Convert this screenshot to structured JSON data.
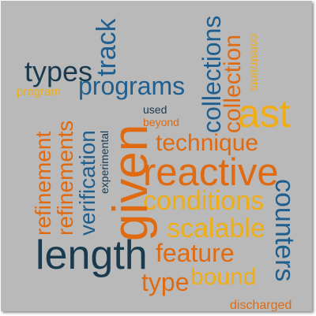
{
  "colors": {
    "background": "#b9b9b9",
    "navy": "#1a3a4f",
    "blue": "#1f5f8f",
    "orange": "#e06a10",
    "yellow": "#f1ad14"
  },
  "words": {
    "given": "given",
    "length": "length",
    "reactive": "reactive",
    "ast": "ast",
    "programs": "programs",
    "collections": "collections",
    "collection": "collection",
    "conditions": "conditions",
    "technique": "technique",
    "scalable": "scalable",
    "feature": "feature",
    "bound": "bound",
    "type": "type",
    "types": "types",
    "track": "track",
    "refinement": "refinement",
    "refinements": "refinements",
    "verification": "verification",
    "counters": "counters",
    "experimental": "experimental",
    "used": "used",
    "beyond": "beyond",
    "program": "program",
    "constraints": "constraints",
    "discharged": "discharged"
  }
}
